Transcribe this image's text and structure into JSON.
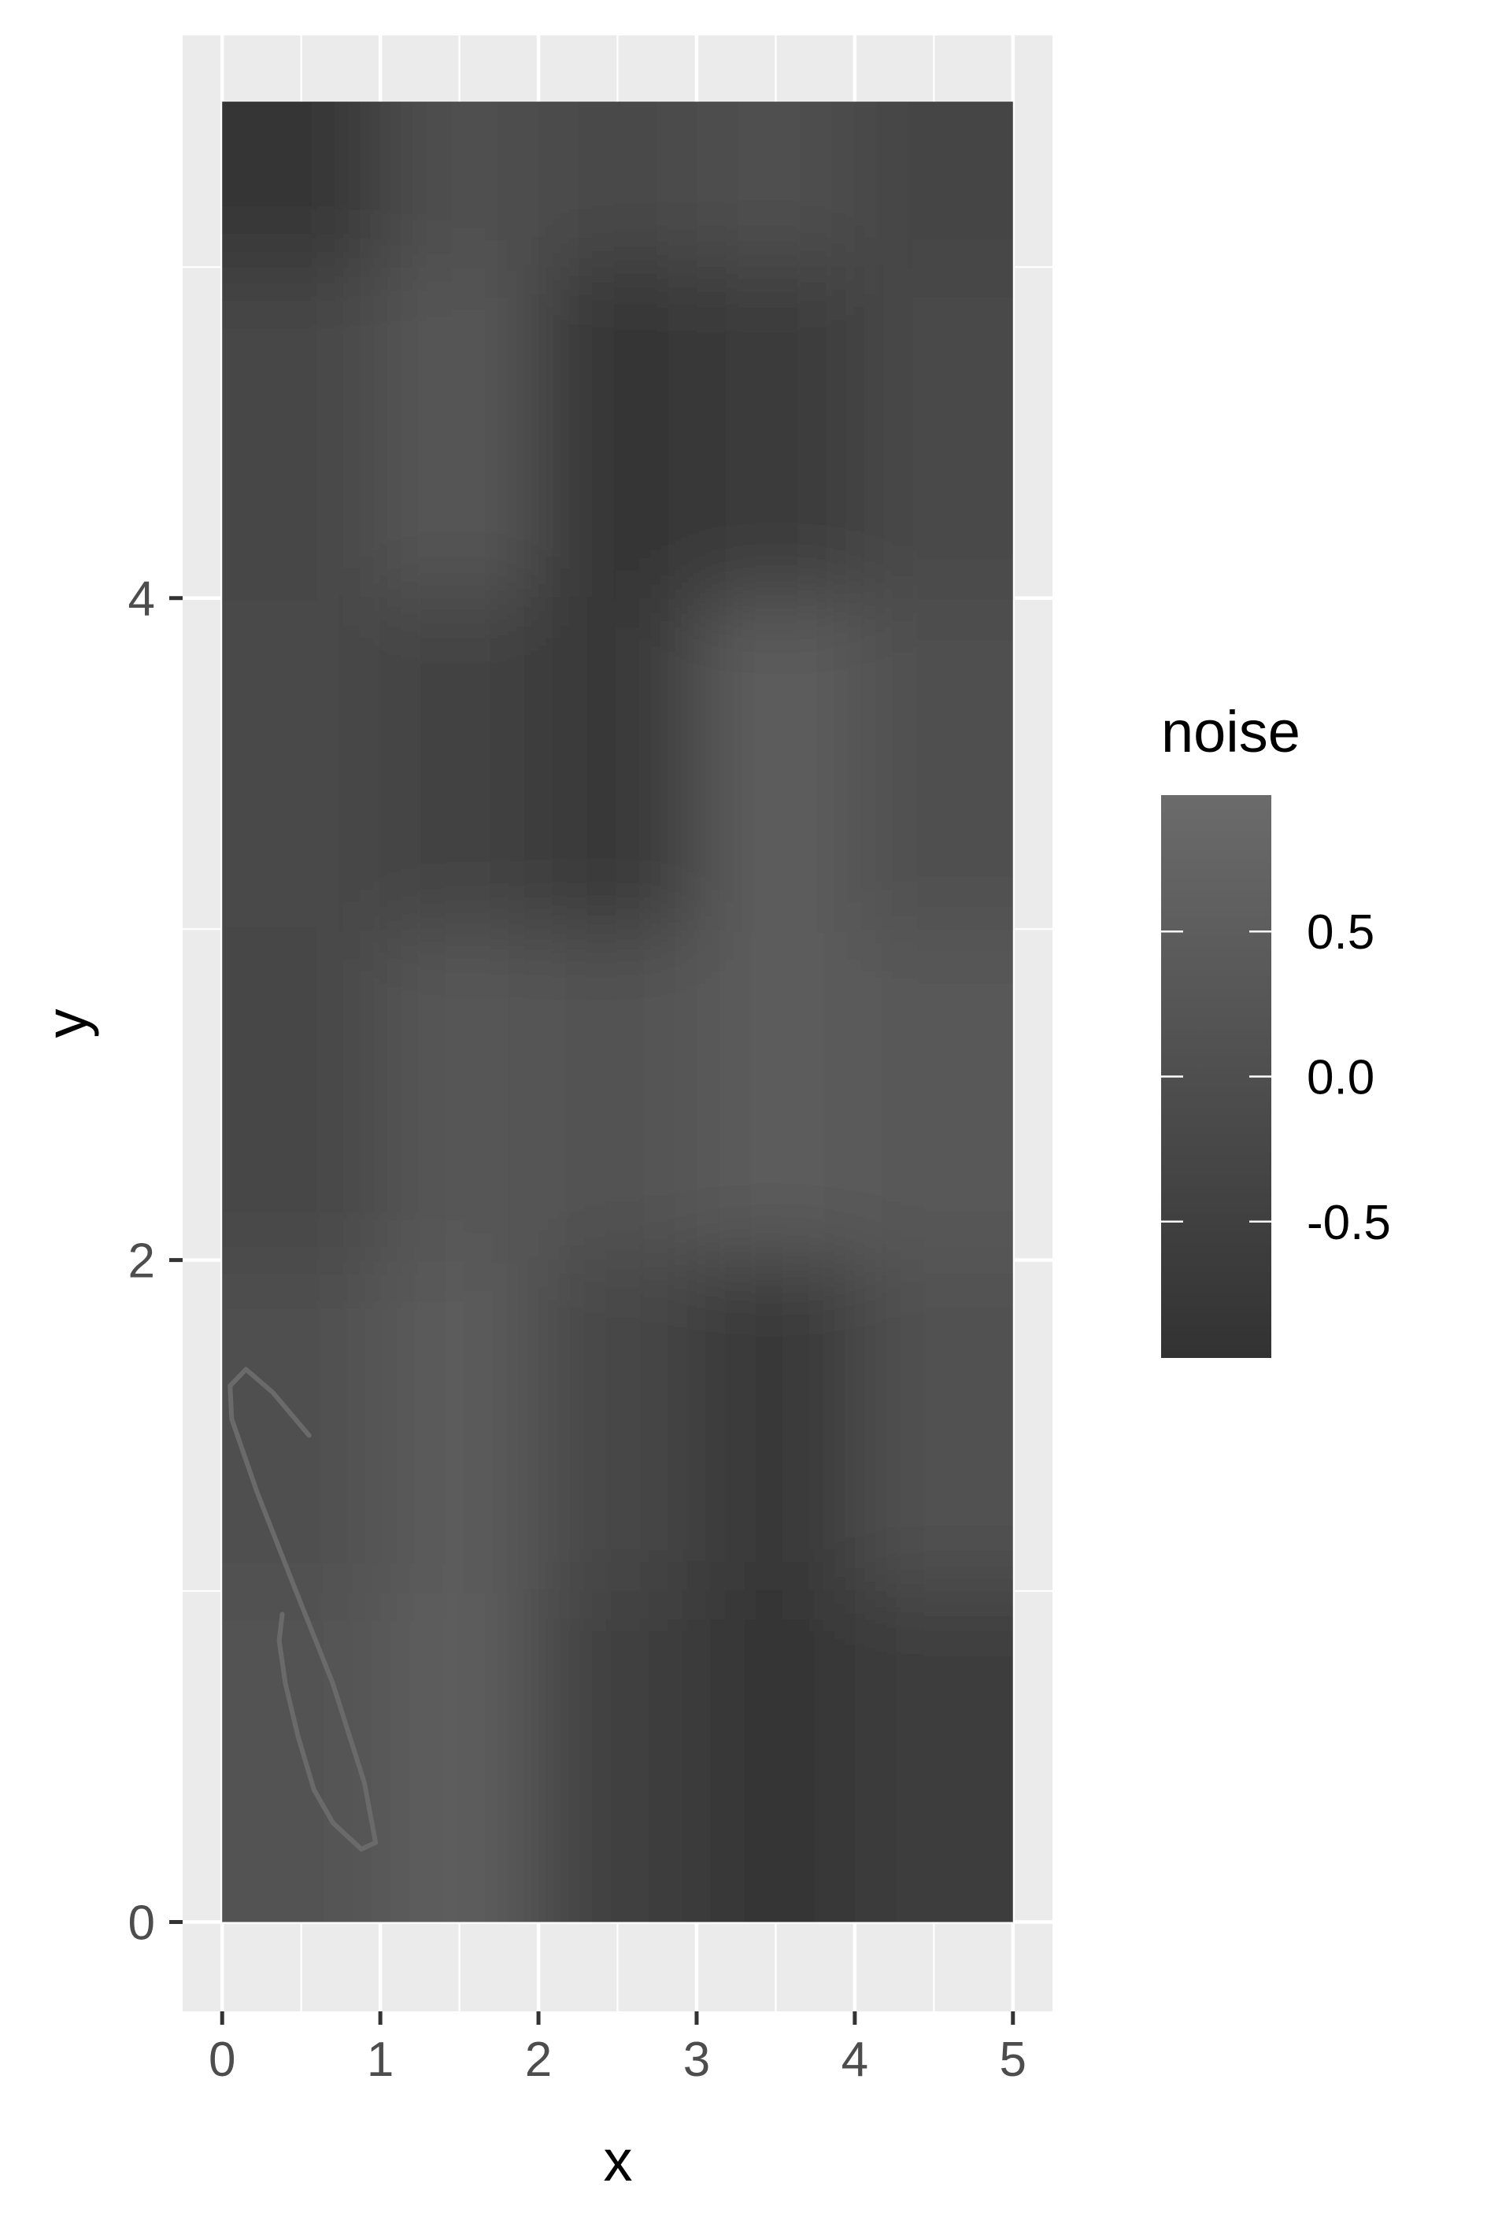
{
  "chart_data": {
    "type": "heatmap",
    "title": "",
    "xlabel": "x",
    "ylabel": "y",
    "xlim": [
      -0.25,
      5.25
    ],
    "ylim": [
      -0.27,
      5.7
    ],
    "x_ticks": [
      0,
      1,
      2,
      3,
      4,
      5
    ],
    "x_tick_labels": [
      "0",
      "1",
      "2",
      "3",
      "4",
      "5"
    ],
    "y_ticks": [
      0,
      2,
      4
    ],
    "y_tick_labels": [
      "0",
      "2",
      "4"
    ],
    "grid": true,
    "panel_background": "#ebebeb",
    "grid_color": "#ffffff",
    "legend": {
      "title": "noise",
      "position": "right",
      "min": -0.97,
      "max": 0.97,
      "ticks": [
        0.5,
        0.0,
        -0.5
      ],
      "tick_labels": [
        "0.5",
        "0.0",
        "-0.5"
      ],
      "low_color": "#323232",
      "high_color": "#6b6b6b"
    },
    "x_values": [
      0.5,
      1.5,
      2.5,
      3.5,
      4.5
    ],
    "y_values": [
      0.5,
      1.5,
      2.5,
      3.5,
      4.5,
      5.5
    ],
    "z_values": [
      [
        0.15,
        0.5,
        -0.45,
        -0.85,
        -0.6
      ],
      [
        0.0,
        0.45,
        -0.3,
        -0.75,
        0.1
      ],
      [
        -0.3,
        0.3,
        0.15,
        0.45,
        0.35
      ],
      [
        -0.2,
        -0.4,
        -0.8,
        0.5,
        0.0
      ],
      [
        -0.3,
        0.25,
        -0.85,
        -0.7,
        -0.2
      ],
      [
        -0.85,
        0.0,
        -0.15,
        0.05,
        -0.35
      ]
    ],
    "curve": {
      "color": "#6a6a6a",
      "points": [
        [
          0.38,
          0.93
        ],
        [
          0.36,
          0.85
        ],
        [
          0.4,
          0.72
        ],
        [
          0.48,
          0.56
        ],
        [
          0.58,
          0.4
        ],
        [
          0.7,
          0.3
        ],
        [
          0.88,
          0.22
        ],
        [
          0.97,
          0.24
        ],
        [
          0.9,
          0.42
        ],
        [
          0.7,
          0.72
        ],
        [
          0.45,
          1.02
        ],
        [
          0.22,
          1.3
        ],
        [
          0.06,
          1.52
        ],
        [
          0.05,
          1.62
        ],
        [
          0.15,
          1.67
        ],
        [
          0.32,
          1.6
        ],
        [
          0.55,
          1.47
        ]
      ]
    }
  }
}
